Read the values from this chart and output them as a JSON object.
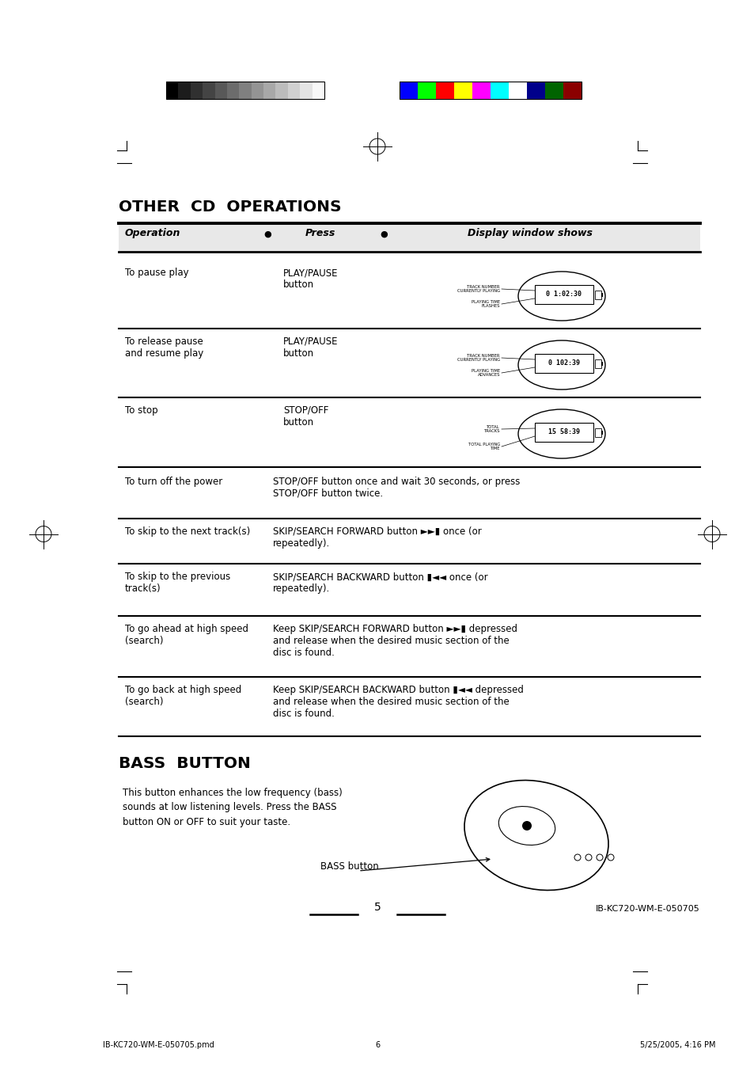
{
  "bg_color": "#ffffff",
  "page_width": 9.54,
  "page_height": 13.49,
  "gray_bars": [
    "#000000",
    "#1c1c1c",
    "#303030",
    "#444444",
    "#585858",
    "#6c6c6c",
    "#808080",
    "#949494",
    "#a8a8a8",
    "#bcbcbc",
    "#d0d0d0",
    "#e4e4e4",
    "#f8f8f8"
  ],
  "color_bars": [
    "#0000ff",
    "#00ff00",
    "#ff0000",
    "#ffff00",
    "#ff00ff",
    "#00ffff",
    "#ffffff",
    "#00008b",
    "#006400",
    "#8b0000"
  ],
  "title": "OTHER  CD  OPERATIONS",
  "section2_title": "BASS  BUTTON",
  "header_col1": "Operation",
  "header_col2": "Press",
  "header_col3": "Display window shows",
  "page_num": "5",
  "doc_id": "IB-KC720-WM-E-050705",
  "footer_left": "IB-KC720-WM-E-050705.pmd",
  "footer_center": "6",
  "footer_right": "5/25/2005, 4:16 PM",
  "rows": [
    {
      "op": "To pause play",
      "press": "PLAY/PAUSE\nbutton",
      "display_label1": "TRACK NUMBER\nCURRENTLY PLAYING",
      "display_label2": "PLAYING TIME\nFLASHES",
      "display_text": "0 1:02:30"
    },
    {
      "op": "To release pause\nand resume play",
      "press": "PLAY/PAUSE\nbutton",
      "display_label1": "TRACK NUMBER\nCURRENTLY PLAYING",
      "display_label2": "PLAYING TIME\nADVANCES",
      "display_text": "0 102:39"
    },
    {
      "op": "To stop",
      "press": "STOP/OFF\nbutton",
      "display_label1": "TOTAL\nTRACKS",
      "display_label2": "TOTAL PLAYING\nTIME",
      "display_text": "15 58:39"
    }
  ],
  "simple_rows": [
    {
      "op": "To turn off the power",
      "press": "STOP/OFF button once and wait 30 seconds, or press\nSTOP/OFF button twice."
    },
    {
      "op": "To skip to the next track(s)",
      "press": "SKIP/SEARCH FORWARD button ►►▮ once (or\nrepeatedly)."
    },
    {
      "op": "To skip to the previous\ntrack(s)",
      "press": "SKIP/SEARCH BACKWARD button ▮◄◄ once (or\nrepeatedly)."
    },
    {
      "op": "To go ahead at high speed\n(search)",
      "press": "Keep SKIP/SEARCH FORWARD button ►►▮ depressed\nand release when the desired music section of the\ndisc is found."
    },
    {
      "op": "To go back at high speed\n(search)",
      "press": "Keep SKIP/SEARCH BACKWARD button ▮◄◄ depressed\nand release when the desired music section of the\ndisc is found."
    }
  ],
  "bass_text": "This button enhances the low frequency (bass)\nsounds at low listening levels. Press the BASS\nbutton ON or OFF to suit your taste.",
  "bass_label": "BASS button"
}
